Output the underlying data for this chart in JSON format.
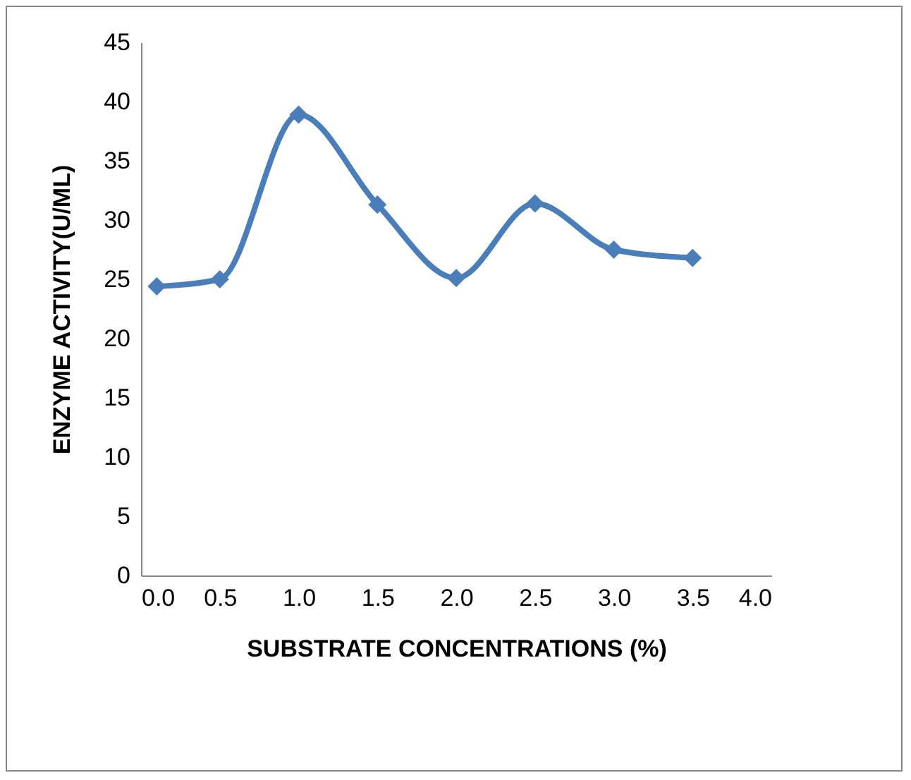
{
  "chart_data": {
    "type": "line",
    "xlabel": "SUBSTRATE CONCENTRATIONS (%)",
    "ylabel": "ENZYME ACTIVITY(U/ML)",
    "x": [
      0.1,
      0.5,
      1.0,
      1.5,
      2.0,
      2.5,
      3.0,
      3.5
    ],
    "series": [
      {
        "color": "#4a7ebb",
        "values": [
          24.4,
          25.0,
          38.9,
          31.3,
          25.1,
          31.4,
          27.5,
          26.8
        ]
      }
    ],
    "xlim": [
      0,
      4
    ],
    "xticks": [
      {
        "value": 0,
        "label": "0.0"
      },
      {
        "value": 0.5,
        "label": "0.5"
      },
      {
        "value": 1,
        "label": "1.0"
      },
      {
        "value": 1.5,
        "label": "1.5"
      },
      {
        "value": 2,
        "label": "2.0"
      },
      {
        "value": 2.5,
        "label": "2.5"
      },
      {
        "value": 3,
        "label": "3.0"
      },
      {
        "value": 3.5,
        "label": "3.5"
      },
      {
        "value": 4,
        "label": "4.0"
      }
    ],
    "ylim": [
      0,
      45
    ],
    "yticks": [
      0,
      5,
      10,
      15,
      20,
      25,
      30,
      35,
      40,
      45
    ],
    "grid": false,
    "legend": false,
    "marker": "diamond",
    "line_style": "solid"
  }
}
